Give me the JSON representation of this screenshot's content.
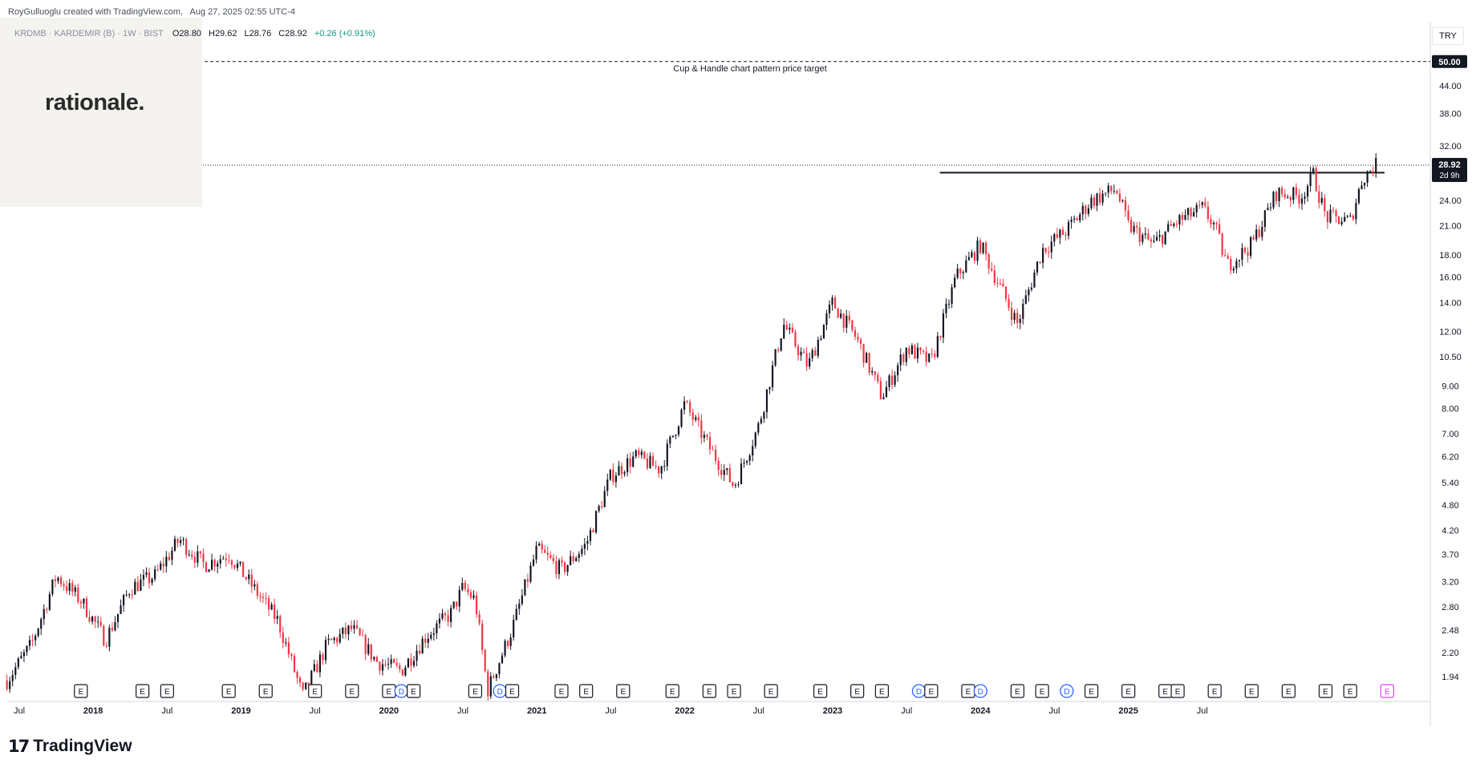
{
  "header": {
    "author_line": "RoyGulluoglu created with TradingView.com,",
    "timestamp": "Aug 27, 2025 02:55 UTC-4"
  },
  "legend": {
    "symbol": "KRDMB · KARDEMIR (B) · 1W · BIST",
    "open": "O28.80",
    "high": "H29.62",
    "low": "L28.76",
    "close": "C28.92",
    "change": "+0.26 (+0.91%)"
  },
  "watermark": "rationale.",
  "currency_label": "TRY",
  "brand": {
    "logo_glyph": "17",
    "name": "TradingView"
  },
  "colors": {
    "up": "#089981",
    "down": "#f23645",
    "candle_up_fill": "#131722"
  },
  "chart_data": {
    "type": "candlestick",
    "scale": "log",
    "ylim": [
      1.7,
      56
    ],
    "yticks": [
      1.94,
      2.2,
      2.48,
      2.8,
      3.2,
      3.7,
      4.2,
      4.8,
      5.4,
      6.2,
      7.0,
      8.0,
      9.0,
      10.5,
      12.0,
      14.0,
      16.0,
      18.0,
      21.0,
      24.0,
      32.0,
      38.0,
      44.0
    ],
    "ytick_labels": [
      "1.94",
      "2.20",
      "2.48",
      "2.80",
      "3.20",
      "3.70",
      "4.20",
      "4.80",
      "5.40",
      "6.20",
      "7.00",
      "8.00",
      "9.00",
      "10.50",
      "12.00",
      "14.00",
      "16.00",
      "18.00",
      "21.00",
      "24.00",
      "32.00",
      "38.00",
      "44.00"
    ],
    "xticks": [
      {
        "label": "Jul",
        "date": "2017-07"
      },
      {
        "label": "2018",
        "date": "2018-01"
      },
      {
        "label": "Jul",
        "date": "2018-07"
      },
      {
        "label": "2019",
        "date": "2019-01"
      },
      {
        "label": "Jul",
        "date": "2019-07"
      },
      {
        "label": "2020",
        "date": "2020-01"
      },
      {
        "label": "Jul",
        "date": "2020-07"
      },
      {
        "label": "2021",
        "date": "2021-01"
      },
      {
        "label": "Jul",
        "date": "2021-07"
      },
      {
        "label": "2022",
        "date": "2022-01"
      },
      {
        "label": "Jul",
        "date": "2022-07"
      },
      {
        "label": "2023",
        "date": "2023-01"
      },
      {
        "label": "Jul",
        "date": "2023-07"
      },
      {
        "label": "2024",
        "date": "2024-01"
      },
      {
        "label": "Jul",
        "date": "2024-07"
      },
      {
        "label": "2025",
        "date": "2025-01"
      },
      {
        "label": "Jul",
        "date": "2025-07"
      }
    ],
    "price_path": [
      [
        "2017-06",
        1.9
      ],
      [
        "2017-08",
        2.3
      ],
      [
        "2017-10",
        3.3
      ],
      [
        "2017-12",
        2.9
      ],
      [
        "2018-02",
        2.35
      ],
      [
        "2018-04",
        3.1
      ],
      [
        "2018-06",
        3.3
      ],
      [
        "2018-08",
        4.0
      ],
      [
        "2018-10",
        3.5
      ],
      [
        "2018-12",
        3.7
      ],
      [
        "2019-02",
        3.1
      ],
      [
        "2019-04",
        2.6
      ],
      [
        "2019-06",
        1.75
      ],
      [
        "2019-08",
        2.3
      ],
      [
        "2019-10",
        2.5
      ],
      [
        "2019-12",
        2.1
      ],
      [
        "2020-02",
        2.0
      ],
      [
        "2020-04",
        2.4
      ],
      [
        "2020-06",
        2.7
      ],
      [
        "2020-07",
        3.1
      ],
      [
        "2020-08",
        2.9
      ],
      [
        "2020-09",
        1.8
      ],
      [
        "2020-11",
        2.5
      ],
      [
        "2021-01",
        3.8
      ],
      [
        "2021-03",
        3.4
      ],
      [
        "2021-05",
        3.9
      ],
      [
        "2021-07",
        5.6
      ],
      [
        "2021-09",
        6.2
      ],
      [
        "2021-11",
        5.8
      ],
      [
        "2022-01",
        8.2
      ],
      [
        "2022-03",
        6.5
      ],
      [
        "2022-05",
        5.3
      ],
      [
        "2022-07",
        7.3
      ],
      [
        "2022-09",
        12.5
      ],
      [
        "2022-11",
        10.0
      ],
      [
        "2023-01",
        14.0
      ],
      [
        "2023-03",
        11.5
      ],
      [
        "2023-05",
        8.5
      ],
      [
        "2023-07",
        11.0
      ],
      [
        "2023-09",
        10.2
      ],
      [
        "2023-11",
        16.0
      ],
      [
        "2024-01",
        19.0
      ],
      [
        "2024-02",
        16.5
      ],
      [
        "2024-04",
        12.5
      ],
      [
        "2024-06",
        18.5
      ],
      [
        "2024-08",
        20.5
      ],
      [
        "2024-10",
        24.0
      ],
      [
        "2024-12",
        25.5
      ],
      [
        "2025-01",
        21.0
      ],
      [
        "2025-03",
        19.0
      ],
      [
        "2025-05",
        21.5
      ],
      [
        "2025-07",
        23.0
      ],
      [
        "2025-08",
        21.0
      ],
      [
        "2025-09",
        17.0
      ],
      [
        "2025-11",
        19.0
      ],
      [
        "2026-01",
        25.0
      ],
      [
        "2026-03",
        24.5
      ],
      [
        "2026-04",
        27.5
      ],
      [
        "2026-05",
        22.0
      ],
      [
        "2026-07",
        21.5
      ],
      [
        "2026-08",
        27.0
      ],
      [
        "2026-09",
        28.92
      ]
    ],
    "last_price": {
      "value": 28.92,
      "label": "28.92",
      "countdown": "2d 9h"
    },
    "resistance_line": {
      "value": 27.8
    },
    "target_line": {
      "value": 50.0,
      "label": "50.00",
      "annotation": "Cup & Handle chart pattern price target"
    },
    "event_markers": [
      {
        "date": "2017-12",
        "type": "E"
      },
      {
        "date": "2018-05",
        "type": "E"
      },
      {
        "date": "2018-07",
        "type": "E"
      },
      {
        "date": "2018-12",
        "type": "E"
      },
      {
        "date": "2019-03",
        "type": "E"
      },
      {
        "date": "2019-07",
        "type": "E"
      },
      {
        "date": "2019-10",
        "type": "E"
      },
      {
        "date": "2020-01",
        "type": "E"
      },
      {
        "date": "2020-02",
        "type": "D"
      },
      {
        "date": "2020-03",
        "type": "E"
      },
      {
        "date": "2020-08",
        "type": "E"
      },
      {
        "date": "2020-10",
        "type": "D"
      },
      {
        "date": "2020-11",
        "type": "E"
      },
      {
        "date": "2021-03",
        "type": "E"
      },
      {
        "date": "2021-05",
        "type": "E"
      },
      {
        "date": "2021-08",
        "type": "E"
      },
      {
        "date": "2021-12",
        "type": "E"
      },
      {
        "date": "2022-03",
        "type": "E"
      },
      {
        "date": "2022-05",
        "type": "E"
      },
      {
        "date": "2022-08",
        "type": "E"
      },
      {
        "date": "2022-12",
        "type": "E"
      },
      {
        "date": "2023-03",
        "type": "E"
      },
      {
        "date": "2023-05",
        "type": "E"
      },
      {
        "date": "2023-08",
        "type": "D"
      },
      {
        "date": "2023-09",
        "type": "E"
      },
      {
        "date": "2023-12",
        "type": "E"
      },
      {
        "date": "2024-01",
        "type": "D"
      },
      {
        "date": "2024-04",
        "type": "E"
      },
      {
        "date": "2024-06",
        "type": "E"
      },
      {
        "date": "2024-08",
        "type": "D"
      },
      {
        "date": "2024-10",
        "type": "E"
      },
      {
        "date": "2025-01",
        "type": "E"
      },
      {
        "date": "2025-04",
        "type": "E"
      },
      {
        "date": "2025-05",
        "type": "E"
      },
      {
        "date": "2025-08",
        "type": "E"
      },
      {
        "date": "2025-11",
        "type": "E"
      },
      {
        "date": "2026-02",
        "type": "E"
      },
      {
        "date": "2026-05",
        "type": "E"
      },
      {
        "date": "2026-07",
        "type": "E"
      },
      {
        "date": "2026-10",
        "type": "E",
        "upcoming": true
      }
    ]
  }
}
